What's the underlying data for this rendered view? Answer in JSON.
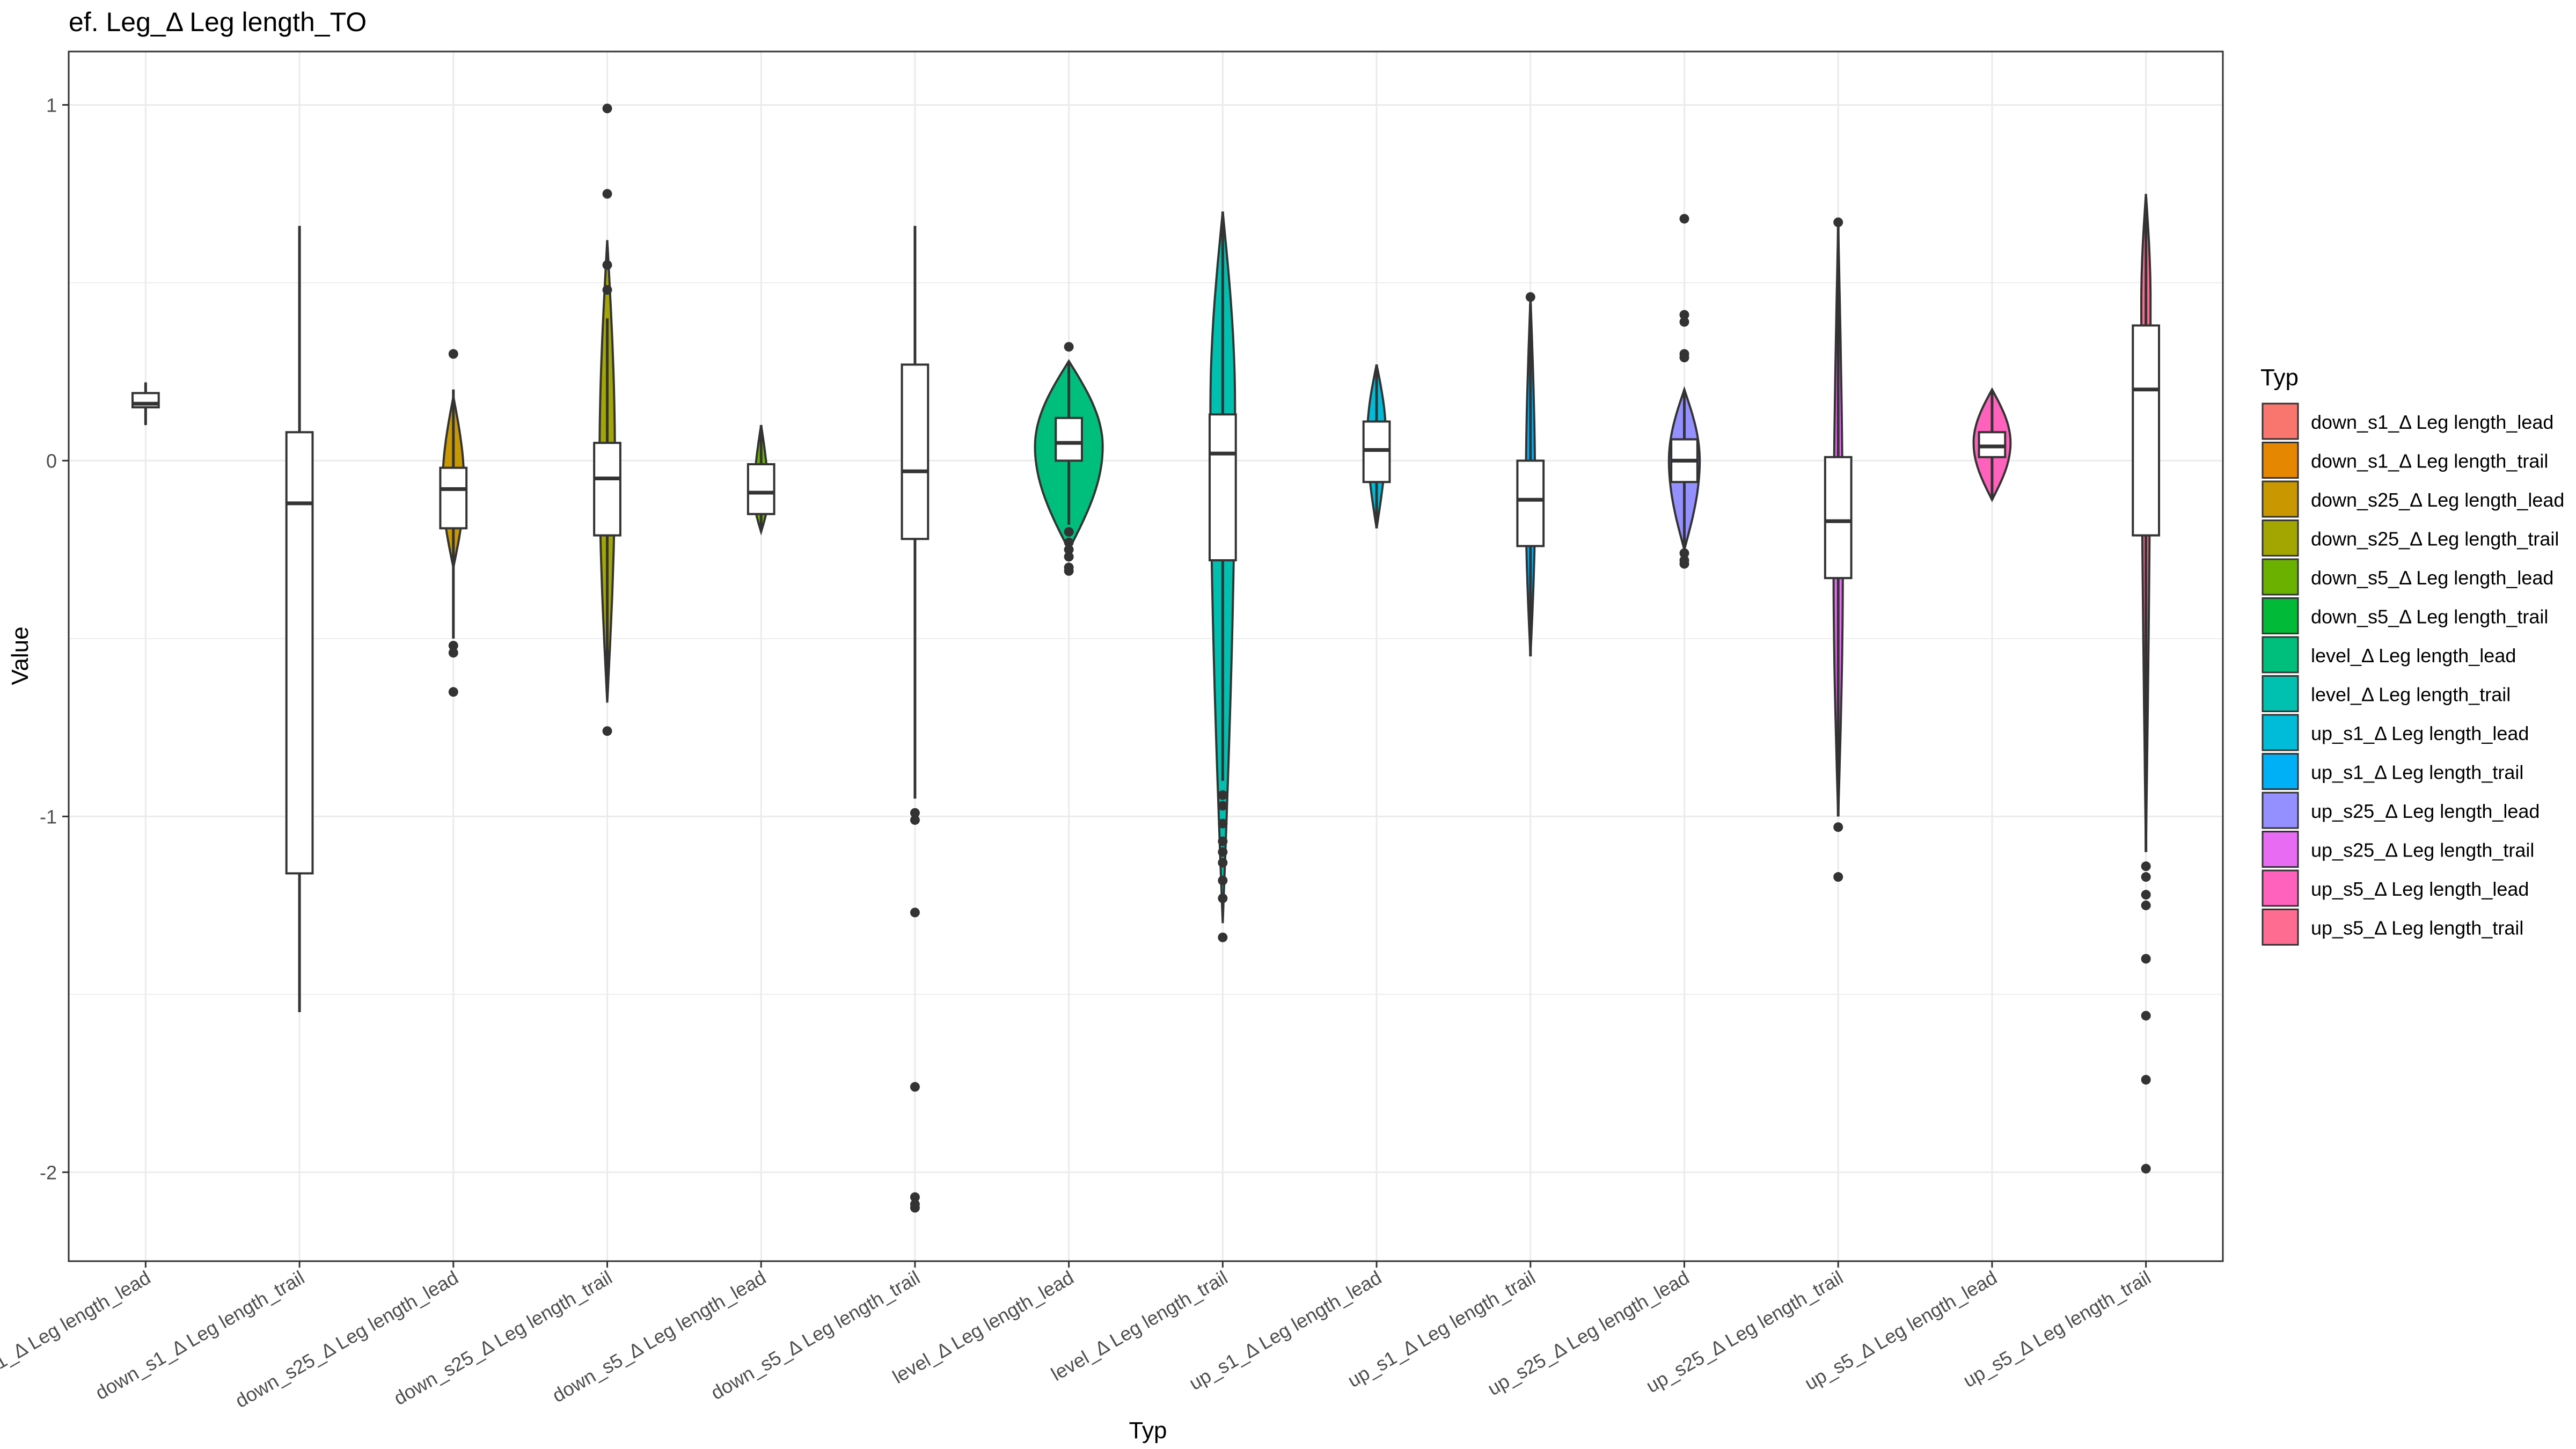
{
  "chart_data": {
    "type": "violin",
    "title": "ef. Leg_Δ Leg length_TO",
    "xlabel": "Typ",
    "ylabel": "Value",
    "ylim": [
      -2.25,
      1.15
    ],
    "yticks": [
      1,
      0,
      -1,
      -2
    ],
    "grid": true,
    "legend_title": "Typ",
    "legend_position": "right",
    "categories": [
      "down_s1_Δ Leg length_lead",
      "down_s1_Δ Leg length_trail",
      "down_s25_Δ Leg length_lead",
      "down_s25_Δ Leg length_trail",
      "down_s5_Δ Leg length_lead",
      "down_s5_Δ Leg length_trail",
      "level_Δ Leg length_lead",
      "level_Δ Leg length_trail",
      "up_s1_Δ Leg length_lead",
      "up_s1_Δ Leg length_trail",
      "up_s25_Δ Leg length_lead",
      "up_s25_Δ Leg length_trail",
      "up_s5_Δ Leg length_lead",
      "up_s5_Δ Leg length_trail"
    ],
    "series": [
      {
        "name": "down_s1_Δ Leg length_lead",
        "color": "#F8766D",
        "violin_ymin": 0.17,
        "violin_ymax": 0.17,
        "violin_maxwidth": 0.0,
        "violin_peak": 0.17,
        "q1": 0.15,
        "median": 0.16,
        "q3": 0.19,
        "whisker_low": 0.1,
        "whisker_high": 0.22,
        "outliers": []
      },
      {
        "name": "down_s1_Δ Leg length_trail",
        "color": "#E58700",
        "violin_ymin": -0.5,
        "violin_ymax": -0.5,
        "violin_maxwidth": 0.0,
        "violin_peak": -0.5,
        "q1": -1.16,
        "median": -0.12,
        "q3": 0.08,
        "whisker_low": -1.55,
        "whisker_high": 0.66,
        "outliers": []
      },
      {
        "name": "down_s25_Δ Leg length_lead",
        "color": "#C99800",
        "violin_ymin": -0.3,
        "violin_ymax": 0.18,
        "violin_maxwidth": 0.07,
        "violin_peak": -0.07,
        "q1": -0.19,
        "median": -0.08,
        "q3": -0.02,
        "whisker_low": -0.5,
        "whisker_high": 0.2,
        "outliers": [
          0.3,
          -0.52,
          -0.54,
          -0.65
        ]
      },
      {
        "name": "down_s25_Δ Leg length_trail",
        "color": "#A3A500",
        "violin_ymin": -0.68,
        "violin_ymax": 0.62,
        "violin_maxwidth": 0.05,
        "violin_peak": 0.0,
        "q1": -0.21,
        "median": -0.05,
        "q3": 0.05,
        "whisker_low": -0.62,
        "whisker_high": 0.4,
        "outliers": [
          0.99,
          0.75,
          0.55,
          0.48,
          -0.76
        ]
      },
      {
        "name": "down_s5_Δ Leg length_lead",
        "color": "#6BB100",
        "violin_ymin": -0.2,
        "violin_ymax": 0.1,
        "violin_maxwidth": 0.045,
        "violin_peak": -0.1,
        "q1": -0.15,
        "median": -0.09,
        "q3": -0.01,
        "whisker_low": -0.2,
        "whisker_high": 0.1,
        "outliers": []
      },
      {
        "name": "down_s5_Δ Leg length_trail",
        "color": "#00BA38",
        "violin_ymin": -2.1,
        "violin_ymax": 0.66,
        "violin_maxwidth": 0.0,
        "violin_peak": 0.0,
        "q1": -0.22,
        "median": -0.03,
        "q3": 0.27,
        "whisker_low": -0.95,
        "whisker_high": 0.66,
        "outliers": [
          -0.99,
          -1.01,
          -1.27,
          -1.76,
          -2.07,
          -2.09,
          -2.1
        ]
      },
      {
        "name": "level_Δ Leg length_lead",
        "color": "#00BF7D",
        "violin_ymin": -0.25,
        "violin_ymax": 0.28,
        "violin_maxwidth": 0.22,
        "violin_peak": 0.04,
        "q1": 0.0,
        "median": 0.05,
        "q3": 0.12,
        "whisker_low": -0.18,
        "whisker_high": 0.28,
        "outliers": [
          0.32,
          -0.2,
          -0.23,
          -0.25,
          -0.27,
          -0.3,
          -0.31
        ]
      },
      {
        "name": "level_Δ Leg length_trail",
        "color": "#00C0AF",
        "violin_ymin": -1.3,
        "violin_ymax": 0.7,
        "violin_maxwidth": 0.08,
        "violin_peak": 0.15,
        "q1": -0.28,
        "median": 0.02,
        "q3": 0.13,
        "whisker_low": -0.9,
        "whisker_high": 0.7,
        "outliers": [
          -0.94,
          -0.97,
          -1.02,
          -1.07,
          -1.1,
          -1.13,
          -1.18,
          -1.23,
          -1.34
        ]
      },
      {
        "name": "up_s1_Δ Leg length_lead",
        "color": "#00BCD8",
        "violin_ymin": -0.19,
        "violin_ymax": 0.27,
        "violin_maxwidth": 0.06,
        "violin_peak": 0.07,
        "q1": -0.06,
        "median": 0.03,
        "q3": 0.11,
        "whisker_low": -0.19,
        "whisker_high": 0.27,
        "outliers": []
      },
      {
        "name": "up_s1_Δ Leg length_trail",
        "color": "#00B0F6",
        "violin_ymin": -0.55,
        "violin_ymax": 0.46,
        "violin_maxwidth": 0.03,
        "violin_peak": -0.1,
        "q1": -0.24,
        "median": -0.11,
        "q3": 0.0,
        "whisker_low": -0.55,
        "whisker_high": 0.44,
        "outliers": [
          0.46
        ]
      },
      {
        "name": "up_s25_Δ Leg length_lead",
        "color": "#9590FF",
        "violin_ymin": -0.25,
        "violin_ymax": 0.2,
        "violin_maxwidth": 0.1,
        "violin_peak": 0.0,
        "q1": -0.06,
        "median": 0.0,
        "q3": 0.06,
        "whisker_low": -0.24,
        "whisker_high": 0.2,
        "outliers": [
          0.68,
          0.41,
          0.39,
          0.3,
          0.29,
          -0.26,
          -0.28,
          -0.29
        ]
      },
      {
        "name": "up_s25_Δ Leg length_trail",
        "color": "#E76BF3",
        "violin_ymin": -1.0,
        "violin_ymax": 0.66,
        "violin_maxwidth": 0.03,
        "violin_peak": -0.3,
        "q1": -0.33,
        "median": -0.17,
        "q3": 0.01,
        "whisker_low": -1.0,
        "whisker_high": 0.66,
        "outliers": [
          0.67,
          -1.03,
          -1.17
        ]
      },
      {
        "name": "up_s5_Δ Leg length_lead",
        "color": "#FF62BC",
        "violin_ymin": -0.11,
        "violin_ymax": 0.2,
        "violin_maxwidth": 0.12,
        "violin_peak": 0.05,
        "q1": 0.01,
        "median": 0.04,
        "q3": 0.08,
        "whisker_low": -0.11,
        "whisker_high": 0.2,
        "outliers": []
      },
      {
        "name": "up_s5_Δ Leg length_trail",
        "color": "#FF6C91",
        "violin_ymin": -1.1,
        "violin_ymax": 0.75,
        "violin_maxwidth": 0.03,
        "violin_peak": 0.45,
        "q1": -0.21,
        "median": 0.2,
        "q3": 0.38,
        "whisker_low": -1.1,
        "whisker_high": 0.74,
        "outliers": [
          -1.14,
          -1.17,
          -1.22,
          -1.25,
          -1.4,
          -1.56,
          -1.74,
          -1.99
        ]
      }
    ]
  }
}
